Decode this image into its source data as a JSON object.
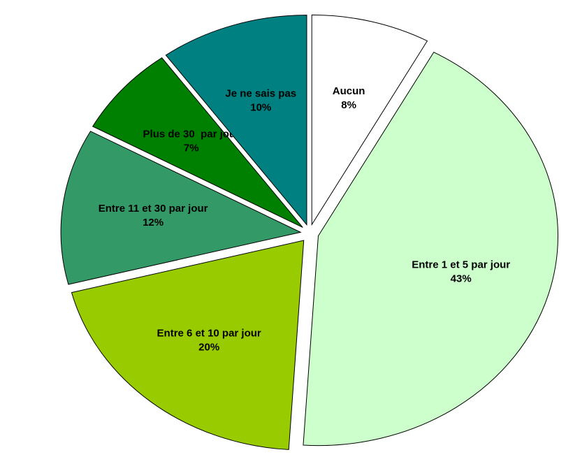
{
  "chart_data": {
    "type": "pie",
    "categories": [
      "Aucun",
      "Entre 1 et 5 par jour",
      "Entre 6 et 10 par jour",
      "Entre 11 et 30 par jour",
      "Plus de 30  par jour",
      "Je ne sais pas"
    ],
    "values": [
      8,
      43,
      20,
      12,
      7,
      10
    ],
    "value_labels": [
      "8%",
      "43%",
      "20%",
      "12%",
      "7%",
      "10%"
    ],
    "colors": [
      "#ffffff",
      "#ccffcc",
      "#99cc00",
      "#339966",
      "#008000",
      "#008080"
    ]
  }
}
